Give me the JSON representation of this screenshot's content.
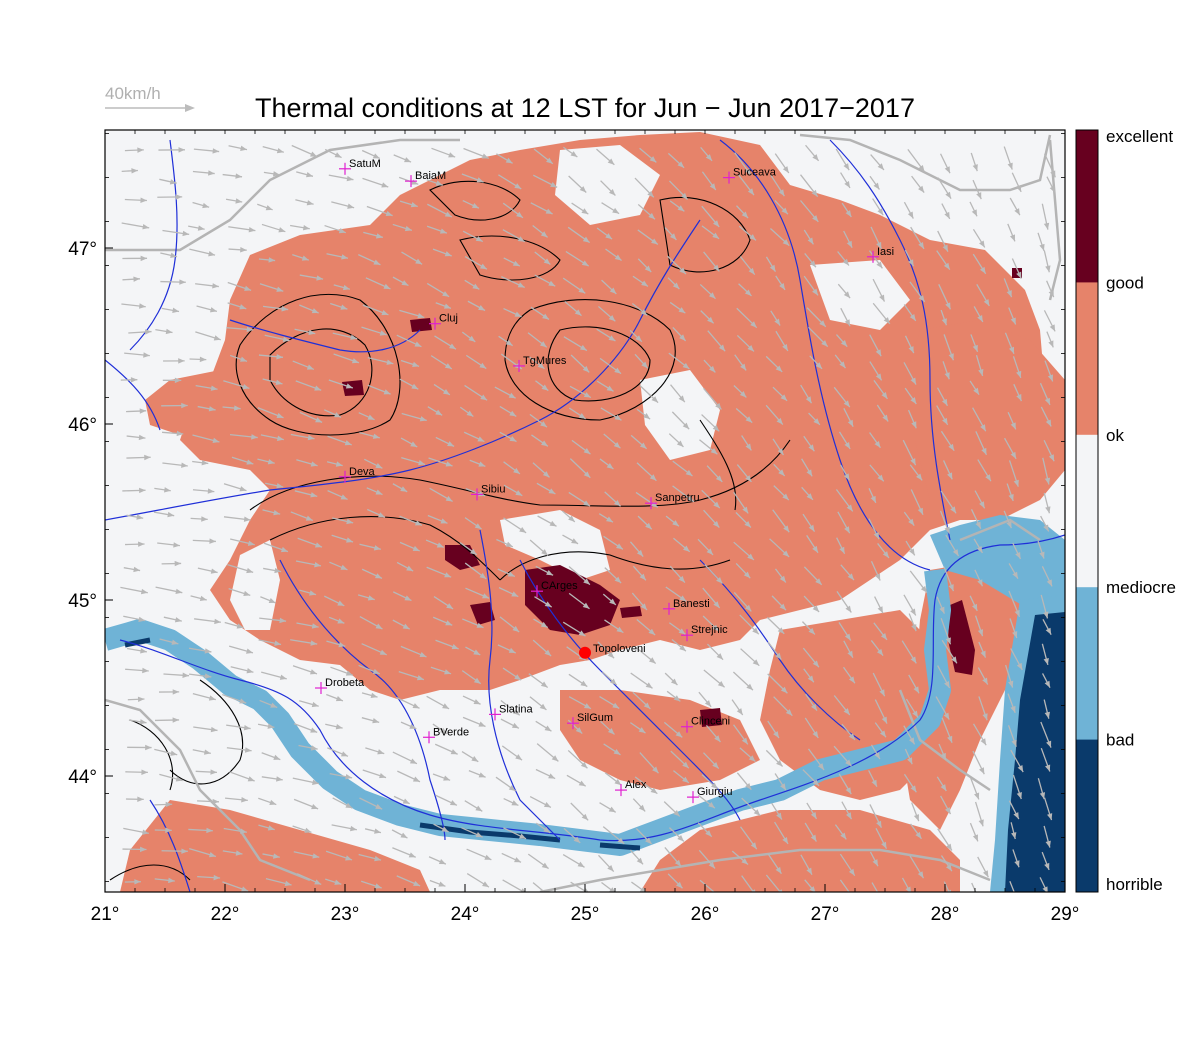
{
  "title": "Thermal conditions at 12 LST for Jun − Jun  2017−2017",
  "wind_scale_label": "40km/h",
  "x_ticks": [
    "21°",
    "22°",
    "23°",
    "24°",
    "25°",
    "26°",
    "27°",
    "28°",
    "29°"
  ],
  "y_ticks": [
    "47°",
    "46°",
    "45°",
    "44°"
  ],
  "legend": {
    "labels": [
      "excellent",
      "good",
      "ok",
      "mediocre",
      "bad",
      "horrible"
    ],
    "colors": [
      "#67001f",
      "#e6836a",
      "#f4f5f7",
      "#6fb3d6",
      "#0a3a6b"
    ]
  },
  "stations": [
    {
      "name": "SatuM",
      "lon": 23.0,
      "lat": 47.45
    },
    {
      "name": "BaiaM",
      "lon": 23.55,
      "lat": 47.38
    },
    {
      "name": "Suceava",
      "lon": 26.2,
      "lat": 47.4
    },
    {
      "name": "Iasi",
      "lon": 27.4,
      "lat": 46.95
    },
    {
      "name": "Cluj",
      "lon": 23.75,
      "lat": 46.57
    },
    {
      "name": "TgMures",
      "lon": 24.45,
      "lat": 46.33
    },
    {
      "name": "Deva",
      "lon": 23.0,
      "lat": 45.7
    },
    {
      "name": "Sibiu",
      "lon": 24.1,
      "lat": 45.6
    },
    {
      "name": "Sanpetru",
      "lon": 25.55,
      "lat": 45.55
    },
    {
      "name": "CArges",
      "lon": 24.6,
      "lat": 45.05
    },
    {
      "name": "Banesti",
      "lon": 25.7,
      "lat": 44.95
    },
    {
      "name": "Strejnic",
      "lon": 25.85,
      "lat": 44.8
    },
    {
      "name": "Drobeta",
      "lon": 22.8,
      "lat": 44.5
    },
    {
      "name": "Slatina",
      "lon": 24.25,
      "lat": 44.35
    },
    {
      "name": "SilGum",
      "lon": 24.9,
      "lat": 44.3
    },
    {
      "name": "Clinceni",
      "lon": 25.85,
      "lat": 44.28
    },
    {
      "name": "BVerde",
      "lon": 23.7,
      "lat": 44.22
    },
    {
      "name": "Alex",
      "lon": 25.3,
      "lat": 43.92
    },
    {
      "name": "Giurgiu",
      "lon": 25.9,
      "lat": 43.88
    }
  ],
  "highlight_station": {
    "name": "Topoloveni",
    "lon": 25.0,
    "lat": 44.7,
    "color": "#ff0000"
  }
}
